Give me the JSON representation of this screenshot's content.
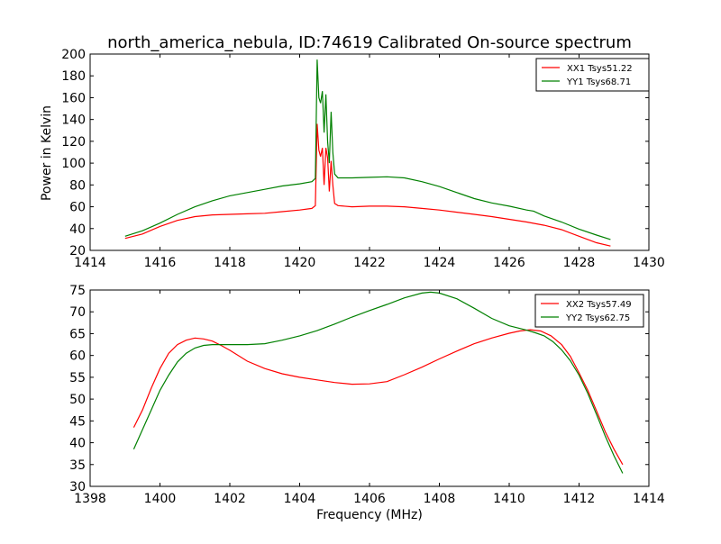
{
  "chart_data": [
    {
      "type": "line",
      "title": "north_america_nebula, ID:74619 Calibrated On-source spectrum",
      "xlabel": "",
      "ylabel": "Power in Kelvin",
      "xlim": [
        1414,
        1430
      ],
      "ylim": [
        20,
        200
      ],
      "xticks": [
        1414,
        1416,
        1418,
        1420,
        1422,
        1424,
        1426,
        1428,
        1430
      ],
      "yticks": [
        20,
        40,
        60,
        80,
        100,
        120,
        140,
        160,
        180,
        200
      ],
      "grid": false,
      "legend_position": "top-right",
      "series": [
        {
          "name": "XX1 Tsys51.22",
          "color": "#ff0000",
          "points": [
            [
              1415,
              31
            ],
            [
              1415.5,
              35
            ],
            [
              1416,
              42
            ],
            [
              1416.5,
              47.5
            ],
            [
              1417,
              51
            ],
            [
              1417.5,
              52.5
            ],
            [
              1418,
              53
            ],
            [
              1418.5,
              53.5
            ],
            [
              1419,
              54
            ],
            [
              1419.5,
              55.5
            ],
            [
              1420,
              57
            ],
            [
              1420.35,
              58.5
            ],
            [
              1420.45,
              61
            ],
            [
              1420.5,
              136
            ],
            [
              1420.55,
              112
            ],
            [
              1420.6,
              106
            ],
            [
              1420.65,
              114
            ],
            [
              1420.7,
              80
            ],
            [
              1420.75,
              114
            ],
            [
              1420.8,
              105
            ],
            [
              1420.85,
              74
            ],
            [
              1420.9,
              102
            ],
            [
              1420.95,
              80
            ],
            [
              1421.0,
              63
            ],
            [
              1421.1,
              61
            ],
            [
              1421.5,
              60
            ],
            [
              1422,
              60.5
            ],
            [
              1422.5,
              60.5
            ],
            [
              1423,
              60
            ],
            [
              1423.5,
              58.5
            ],
            [
              1424,
              57
            ],
            [
              1424.5,
              55
            ],
            [
              1425,
              53
            ],
            [
              1425.5,
              51
            ],
            [
              1426,
              48.5
            ],
            [
              1426.5,
              46
            ],
            [
              1427,
              43
            ],
            [
              1427.5,
              39
            ],
            [
              1428,
              33
            ],
            [
              1428.5,
              27
            ],
            [
              1428.9,
              24
            ]
          ]
        },
        {
          "name": "YY1 Tsys68.71",
          "color": "#008000",
          "points": [
            [
              1415,
              33
            ],
            [
              1415.5,
              38
            ],
            [
              1416,
              45
            ],
            [
              1416.5,
              53
            ],
            [
              1417,
              60
            ],
            [
              1417.5,
              65.5
            ],
            [
              1418,
              70
            ],
            [
              1418.5,
              73
            ],
            [
              1419,
              76
            ],
            [
              1419.5,
              79
            ],
            [
              1420,
              81
            ],
            [
              1420.35,
              83
            ],
            [
              1420.45,
              86
            ],
            [
              1420.5,
              195
            ],
            [
              1420.55,
              160
            ],
            [
              1420.6,
              155
            ],
            [
              1420.65,
              166
            ],
            [
              1420.7,
              128
            ],
            [
              1420.75,
              163
            ],
            [
              1420.8,
              120
            ],
            [
              1420.85,
              100
            ],
            [
              1420.9,
              147
            ],
            [
              1420.95,
              110
            ],
            [
              1421.0,
              90
            ],
            [
              1421.1,
              86.5
            ],
            [
              1421.5,
              86.5
            ],
            [
              1422,
              87
            ],
            [
              1422.5,
              87.5
            ],
            [
              1423,
              86.5
            ],
            [
              1423.5,
              83
            ],
            [
              1424,
              78.5
            ],
            [
              1424.5,
              73
            ],
            [
              1425,
              67.5
            ],
            [
              1425.5,
              63.5
            ],
            [
              1426,
              60.5
            ],
            [
              1426.5,
              57
            ],
            [
              1426.7,
              56
            ],
            [
              1427,
              51.5
            ],
            [
              1427.5,
              46
            ],
            [
              1428,
              39.5
            ],
            [
              1428.5,
              34
            ],
            [
              1428.9,
              30
            ]
          ]
        }
      ]
    },
    {
      "type": "line",
      "title": "",
      "xlabel": "Frequency (MHz)",
      "ylabel": "",
      "xlim": [
        1398,
        1414
      ],
      "ylim": [
        30,
        75
      ],
      "xticks": [
        1398,
        1400,
        1402,
        1404,
        1406,
        1408,
        1410,
        1412,
        1414
      ],
      "yticks": [
        30,
        35,
        40,
        45,
        50,
        55,
        60,
        65,
        70,
        75
      ],
      "grid": false,
      "legend_position": "top-right",
      "series": [
        {
          "name": "XX2 Tsys57.49",
          "color": "#ff0000",
          "points": [
            [
              1399.25,
              43.5
            ],
            [
              1399.5,
              47.5
            ],
            [
              1399.75,
              52.5
            ],
            [
              1400,
              57
            ],
            [
              1400.25,
              60.5
            ],
            [
              1400.5,
              62.5
            ],
            [
              1400.75,
              63.5
            ],
            [
              1401,
              64
            ],
            [
              1401.25,
              63.8
            ],
            [
              1401.5,
              63.3
            ],
            [
              1401.75,
              62.3
            ],
            [
              1402,
              61.2
            ],
            [
              1402.5,
              58.7
            ],
            [
              1403,
              57
            ],
            [
              1403.5,
              55.8
            ],
            [
              1404,
              55
            ],
            [
              1404.5,
              54.4
            ],
            [
              1405,
              53.8
            ],
            [
              1405.5,
              53.4
            ],
            [
              1406,
              53.5
            ],
            [
              1406.5,
              54
            ],
            [
              1407,
              55.6
            ],
            [
              1407.5,
              57.3
            ],
            [
              1408,
              59.2
            ],
            [
              1408.5,
              61
            ],
            [
              1409,
              62.7
            ],
            [
              1409.5,
              64
            ],
            [
              1410,
              65.1
            ],
            [
              1410.3,
              65.6
            ],
            [
              1410.6,
              65.9
            ],
            [
              1410.9,
              65.6
            ],
            [
              1411.2,
              64.5
            ],
            [
              1411.5,
              62.5
            ],
            [
              1411.75,
              59.8
            ],
            [
              1412,
              56
            ],
            [
              1412.25,
              52
            ],
            [
              1412.5,
              47.3
            ],
            [
              1412.75,
              42.5
            ],
            [
              1413,
              38.5
            ],
            [
              1413.25,
              35
            ]
          ]
        },
        {
          "name": "YY2 Tsys62.75",
          "color": "#008000",
          "points": [
            [
              1399.25,
              38.5
            ],
            [
              1399.5,
              43
            ],
            [
              1399.75,
              47.5
            ],
            [
              1400,
              52
            ],
            [
              1400.25,
              55.5
            ],
            [
              1400.5,
              58.5
            ],
            [
              1400.75,
              60.5
            ],
            [
              1401,
              61.7
            ],
            [
              1401.25,
              62.3
            ],
            [
              1401.5,
              62.5
            ],
            [
              1402,
              62.5
            ],
            [
              1402.5,
              62.5
            ],
            [
              1403,
              62.7
            ],
            [
              1403.5,
              63.5
            ],
            [
              1404,
              64.5
            ],
            [
              1404.5,
              65.7
            ],
            [
              1405,
              67.2
            ],
            [
              1405.5,
              68.8
            ],
            [
              1406,
              70.3
            ],
            [
              1406.5,
              71.7
            ],
            [
              1407,
              73.2
            ],
            [
              1407.5,
              74.3
            ],
            [
              1407.75,
              74.5
            ],
            [
              1408,
              74.3
            ],
            [
              1408.5,
              73
            ],
            [
              1409,
              70.8
            ],
            [
              1409.5,
              68.5
            ],
            [
              1410,
              66.8
            ],
            [
              1410.5,
              65.8
            ],
            [
              1410.75,
              65.2
            ],
            [
              1411,
              64.5
            ],
            [
              1411.25,
              63.2
            ],
            [
              1411.5,
              61.3
            ],
            [
              1411.75,
              58.8
            ],
            [
              1412,
              55.5
            ],
            [
              1412.25,
              51.3
            ],
            [
              1412.5,
              46.5
            ],
            [
              1412.75,
              41.5
            ],
            [
              1413,
              37
            ],
            [
              1413.25,
              33
            ]
          ]
        }
      ]
    }
  ]
}
